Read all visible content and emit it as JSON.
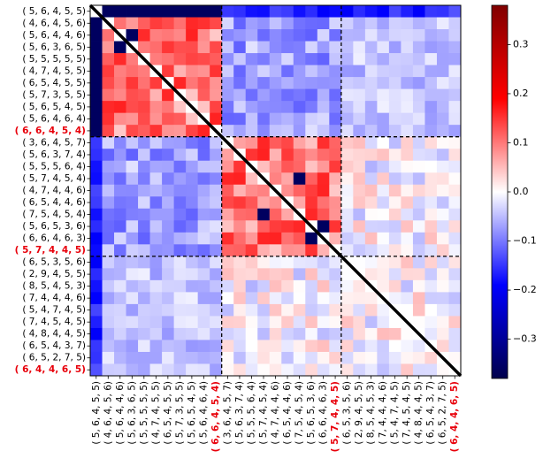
{
  "chart_data": {
    "type": "heatmap",
    "title": "",
    "xlabel": "",
    "ylabel": "",
    "labels": [
      "( 5, 6, 4, 5, 5)",
      "( 4, 6, 4, 5, 6)",
      "( 5, 6, 4, 4, 6)",
      "( 5, 6, 3, 6, 5)",
      "( 5, 5, 5, 5, 5)",
      "( 4, 7, 4, 5, 5)",
      "( 6, 5, 4, 5, 5)",
      "( 5, 7, 3, 5, 5)",
      "( 5, 6, 5, 4, 5)",
      "( 5, 6, 4, 6, 4)",
      "( 6, 6, 4, 5, 4)",
      "( 3, 6, 4, 5, 7)",
      "( 5, 6, 3, 7, 4)",
      "( 5, 5, 5, 6, 4)",
      "( 5, 7, 4, 5, 4)",
      "( 4, 7, 4, 4, 6)",
      "( 6, 5, 4, 4, 6)",
      "( 7, 5, 4, 5, 4)",
      "( 5, 6, 5, 3, 6)",
      "( 6, 6, 4, 6, 3)",
      "( 5, 7, 4, 4, 5)",
      "( 6, 5, 3, 5, 6)",
      "( 2, 9, 4, 5, 5)",
      "( 8, 5, 4, 5, 3)",
      "( 7, 4, 4, 4, 6)",
      "( 5, 4, 7, 4, 5)",
      "( 7, 4, 5, 4, 5)",
      "( 4, 8, 4, 4, 5)",
      "( 6, 5, 4, 3, 7)",
      "( 6, 5, 2, 7, 5)",
      "( 6, 4, 4, 6, 5)"
    ],
    "highlighted_labels": [
      "( 6, 6, 4, 5, 4)",
      "( 5, 7, 4, 4, 5)",
      "( 6, 4, 4, 6, 5)"
    ],
    "highlight_color": "#e8000b",
    "block_boundaries": [
      11,
      21
    ],
    "colormap": "seismic",
    "colorbar": {
      "ticks": [
        -0.3,
        -0.2,
        -0.1,
        0.0,
        0.1,
        0.2,
        0.3
      ],
      "tick_labels": [
        "−0.3",
        "−0.2",
        "−0.1",
        "0.0",
        "0.1",
        "0.2",
        "0.3"
      ],
      "vmin": -0.38,
      "vmax": 0.38
    },
    "diagonal": "black line",
    "grid": false
  }
}
